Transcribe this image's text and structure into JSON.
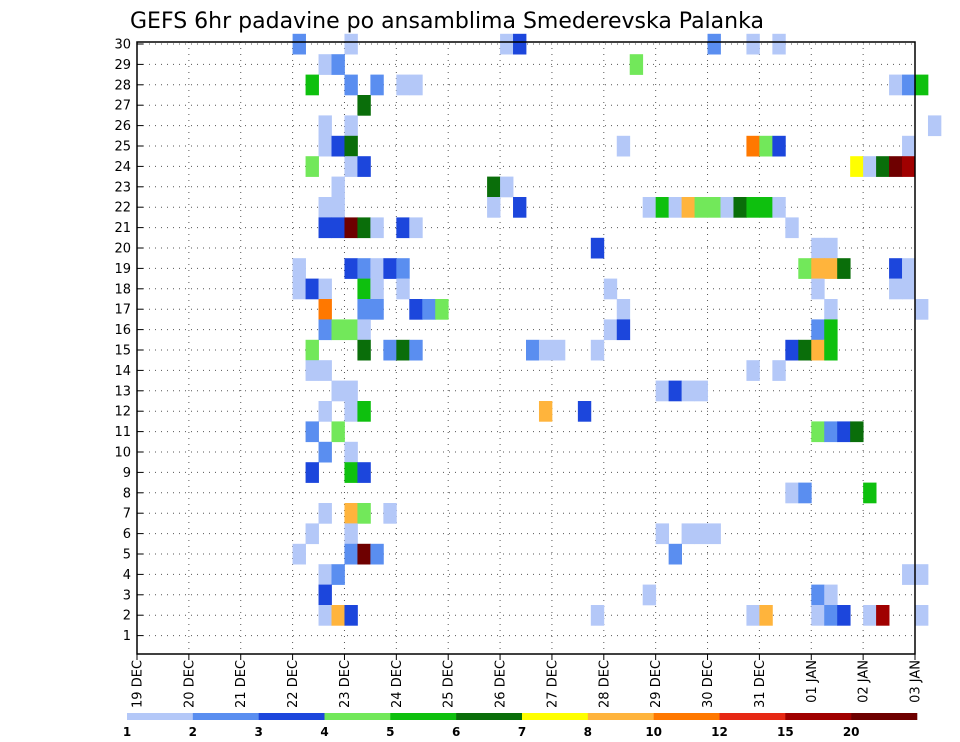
{
  "chart_data": {
    "type": "heatmap",
    "title": "GEFS 6hr padavine po ansamblima Smederevska Palanka",
    "x_tick_labels": [
      "19 DEC",
      "20 DEC",
      "21 DEC",
      "22 DEC",
      "23 DEC",
      "24 DEC",
      "25 DEC",
      "26 DEC",
      "27 DEC",
      "28 DEC",
      "29 DEC",
      "30 DEC",
      "31 DEC",
      "01 JAN",
      "02 JAN",
      "03 JAN"
    ],
    "y_tick_labels": [
      "1",
      "2",
      "3",
      "4",
      "5",
      "6",
      "7",
      "8",
      "9",
      "10",
      "11",
      "12",
      "13",
      "14",
      "15",
      "16",
      "17",
      "18",
      "19",
      "20",
      "21",
      "22",
      "23",
      "24",
      "25",
      "26",
      "27",
      "28",
      "29",
      "30"
    ],
    "steps_per_day": 4,
    "grid": "dotted",
    "legend": {
      "placement": "bottom",
      "labels": [
        "1",
        "2",
        "3",
        "4",
        "5",
        "6",
        "7",
        "8",
        "10",
        "12",
        "15",
        "20"
      ],
      "colors": [
        "#b4c8f8",
        "#5a8ef0",
        "#1c46dc",
        "#72e85a",
        "#0ec00e",
        "#0a6e0a",
        "#ffff00",
        "#ffb43c",
        "#ff7800",
        "#e62814",
        "#a00000",
        "#6e0000"
      ]
    },
    "cells": [
      [
        30,
        3,
        2
      ],
      [
        30,
        4,
        1
      ],
      [
        30,
        7,
        1
      ],
      [
        30,
        7.25,
        3
      ],
      [
        30,
        11,
        2
      ],
      [
        30,
        11.75,
        1
      ],
      [
        30,
        12.25,
        1
      ],
      [
        29,
        3.5,
        1
      ],
      [
        29,
        3.75,
        2
      ],
      [
        29,
        9.5,
        4
      ],
      [
        28,
        3.25,
        5
      ],
      [
        28,
        4,
        2
      ],
      [
        28,
        4.5,
        2
      ],
      [
        28,
        5,
        1
      ],
      [
        28,
        5.25,
        1
      ],
      [
        28,
        14.5,
        1
      ],
      [
        28,
        14.75,
        2
      ],
      [
        28,
        15,
        5
      ],
      [
        27,
        4.25,
        6
      ],
      [
        26,
        3.5,
        1
      ],
      [
        26,
        4,
        1
      ],
      [
        26,
        15.25,
        1
      ],
      [
        25,
        3.5,
        1
      ],
      [
        25,
        3.75,
        3
      ],
      [
        25,
        4,
        6
      ],
      [
        25,
        9.25,
        1
      ],
      [
        25,
        11.75,
        10
      ],
      [
        25,
        12,
        4
      ],
      [
        25,
        12.25,
        3
      ],
      [
        25,
        14.75,
        1
      ],
      [
        24,
        3.25,
        4
      ],
      [
        24,
        4,
        1
      ],
      [
        24,
        4.25,
        3
      ],
      [
        24,
        13.75,
        7
      ],
      [
        24,
        14,
        1
      ],
      [
        24,
        14.25,
        6
      ],
      [
        24,
        14.5,
        20
      ],
      [
        24,
        14.75,
        15
      ],
      [
        23,
        3.75,
        1
      ],
      [
        23,
        6.75,
        6
      ],
      [
        23,
        7,
        1
      ],
      [
        22,
        3.5,
        1
      ],
      [
        22,
        3.75,
        1
      ],
      [
        22,
        6.75,
        1
      ],
      [
        22,
        7.25,
        3
      ],
      [
        22,
        9.75,
        1
      ],
      [
        22,
        10,
        5
      ],
      [
        22,
        10.25,
        1
      ],
      [
        22,
        10.5,
        8
      ],
      [
        22,
        10.75,
        4
      ],
      [
        22,
        11,
        4
      ],
      [
        22,
        11.25,
        1
      ],
      [
        22,
        11.5,
        6
      ],
      [
        22,
        11.75,
        5
      ],
      [
        22,
        12,
        5
      ],
      [
        22,
        12.25,
        1
      ],
      [
        21,
        3.5,
        3
      ],
      [
        21,
        3.75,
        3
      ],
      [
        21,
        4,
        20
      ],
      [
        21,
        4.25,
        6
      ],
      [
        21,
        4.5,
        1
      ],
      [
        21,
        5,
        3
      ],
      [
        21,
        5.25,
        1
      ],
      [
        21,
        12.5,
        1
      ],
      [
        20,
        8.75,
        3
      ],
      [
        20,
        13,
        1
      ],
      [
        20,
        13.25,
        1
      ],
      [
        19,
        3,
        1
      ],
      [
        19,
        4,
        3
      ],
      [
        19,
        4.25,
        2
      ],
      [
        19,
        4.5,
        1
      ],
      [
        19,
        4.75,
        3
      ],
      [
        19,
        5,
        2
      ],
      [
        19,
        12.75,
        4
      ],
      [
        19,
        13,
        8
      ],
      [
        19,
        13.25,
        8
      ],
      [
        19,
        13.5,
        6
      ],
      [
        19,
        14.5,
        3
      ],
      [
        19,
        14.75,
        1
      ],
      [
        18,
        3,
        1
      ],
      [
        18,
        3.25,
        3
      ],
      [
        18,
        3.5,
        1
      ],
      [
        18,
        4.25,
        5
      ],
      [
        18,
        4.5,
        1
      ],
      [
        18,
        5,
        1
      ],
      [
        18,
        9,
        1
      ],
      [
        18,
        13,
        1
      ],
      [
        18,
        14.5,
        1
      ],
      [
        18,
        14.75,
        1
      ],
      [
        17,
        3.5,
        10
      ],
      [
        17,
        4.25,
        2
      ],
      [
        17,
        4.5,
        2
      ],
      [
        17,
        5.25,
        3
      ],
      [
        17,
        5.5,
        2
      ],
      [
        17,
        5.75,
        4
      ],
      [
        17,
        9.25,
        1
      ],
      [
        17,
        13.25,
        1
      ],
      [
        17,
        15,
        1
      ],
      [
        16,
        3.5,
        2
      ],
      [
        16,
        3.75,
        4
      ],
      [
        16,
        4,
        4
      ],
      [
        16,
        4.25,
        1
      ],
      [
        16,
        9,
        1
      ],
      [
        16,
        9.25,
        3
      ],
      [
        16,
        13,
        2
      ],
      [
        16,
        13.25,
        5
      ],
      [
        15,
        3.25,
        4
      ],
      [
        15,
        4.25,
        6
      ],
      [
        15,
        4.75,
        2
      ],
      [
        15,
        5,
        6
      ],
      [
        15,
        5.25,
        2
      ],
      [
        15,
        7.5,
        2
      ],
      [
        15,
        7.75,
        1
      ],
      [
        15,
        8,
        1
      ],
      [
        15,
        8.75,
        1
      ],
      [
        15,
        12.5,
        3
      ],
      [
        15,
        12.75,
        6
      ],
      [
        15,
        13,
        8
      ],
      [
        15,
        13.25,
        5
      ],
      [
        14,
        3.25,
        1
      ],
      [
        14,
        3.5,
        1
      ],
      [
        14,
        11.75,
        1
      ],
      [
        14,
        12.25,
        1
      ],
      [
        13,
        3.75,
        1
      ],
      [
        13,
        4,
        1
      ],
      [
        13,
        10,
        1
      ],
      [
        13,
        10.25,
        3
      ],
      [
        13,
        10.5,
        1
      ],
      [
        13,
        10.75,
        1
      ],
      [
        12,
        3.5,
        1
      ],
      [
        12,
        4,
        1
      ],
      [
        12,
        4.25,
        5
      ],
      [
        12,
        7.75,
        8
      ],
      [
        12,
        8.5,
        3
      ],
      [
        11,
        3.25,
        2
      ],
      [
        11,
        3.75,
        4
      ],
      [
        11,
        13,
        4
      ],
      [
        11,
        13.25,
        2
      ],
      [
        11,
        13.5,
        3
      ],
      [
        11,
        13.75,
        6
      ],
      [
        10,
        3.5,
        2
      ],
      [
        10,
        4,
        1
      ],
      [
        9,
        3.25,
        3
      ],
      [
        9,
        4,
        5
      ],
      [
        9,
        4.25,
        3
      ],
      [
        8,
        12.5,
        1
      ],
      [
        8,
        12.75,
        2
      ],
      [
        8,
        14,
        5
      ],
      [
        7,
        3.5,
        1
      ],
      [
        7,
        4,
        8
      ],
      [
        7,
        4.25,
        4
      ],
      [
        7,
        4.75,
        1
      ],
      [
        6,
        3.25,
        1
      ],
      [
        6,
        4,
        1
      ],
      [
        6,
        10,
        1
      ],
      [
        6,
        10.5,
        1
      ],
      [
        6,
        10.75,
        1
      ],
      [
        6,
        11,
        1
      ],
      [
        5,
        3,
        1
      ],
      [
        5,
        4,
        2
      ],
      [
        5,
        4.25,
        20
      ],
      [
        5,
        4.5,
        2
      ],
      [
        5,
        10.25,
        2
      ],
      [
        4,
        3.5,
        1
      ],
      [
        4,
        3.75,
        2
      ],
      [
        4,
        14.75,
        1
      ],
      [
        4,
        15,
        1
      ],
      [
        3,
        3.5,
        3
      ],
      [
        3,
        9.75,
        1
      ],
      [
        3,
        13,
        2
      ],
      [
        3,
        13.25,
        1
      ],
      [
        2,
        3.5,
        1
      ],
      [
        2,
        3.75,
        8
      ],
      [
        2,
        4,
        3
      ],
      [
        2,
        8.75,
        1
      ],
      [
        2,
        11.75,
        1
      ],
      [
        2,
        12,
        8
      ],
      [
        2,
        13,
        1
      ],
      [
        2,
        13.25,
        2
      ],
      [
        2,
        13.5,
        3
      ],
      [
        2,
        14,
        1
      ],
      [
        2,
        14.25,
        15
      ],
      [
        2,
        15,
        1
      ]
    ]
  }
}
